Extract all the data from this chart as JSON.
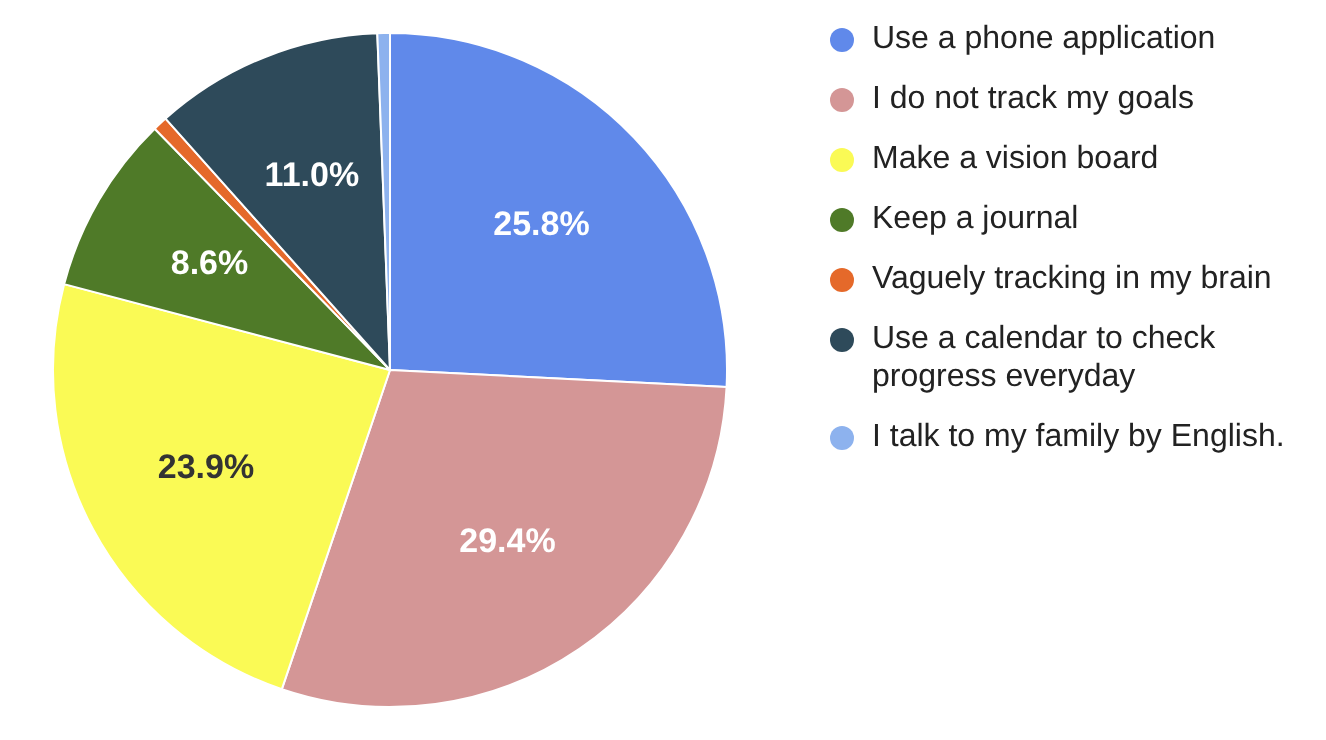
{
  "chart_data": {
    "type": "pie",
    "categories": [
      "Use a phone application",
      "I do not track my goals",
      "Make a vision board",
      "Keep a journal",
      "Vaguely tracking in my brain",
      "Use a calendar to check progress everyday",
      "I talk to my family by English."
    ],
    "values": [
      25.8,
      29.4,
      23.9,
      8.6,
      0.7,
      11.0,
      0.6
    ],
    "colors": [
      "#6089ea",
      "#d49696",
      "#fafa55",
      "#4f7a28",
      "#e5692a",
      "#2e4a5a",
      "#8db2ee"
    ],
    "value_labels": [
      "25.8%",
      "29.4%",
      "23.9%",
      "8.6%",
      null,
      "11.0%",
      null
    ],
    "legend": "right"
  }
}
